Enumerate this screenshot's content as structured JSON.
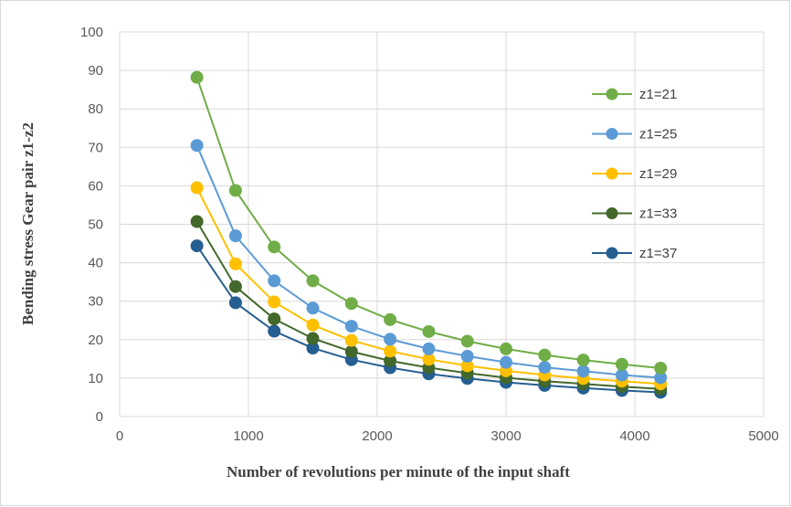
{
  "chart_data": {
    "type": "line",
    "title": "",
    "xlabel": "Number of revolutions per minute of the input shaft",
    "ylabel": "Bending stress Gear pair z1-z2",
    "xlim": [
      0,
      5000
    ],
    "ylim": [
      0,
      100
    ],
    "x_ticks": [
      0,
      1000,
      2000,
      3000,
      4000,
      5000
    ],
    "y_ticks": [
      0,
      10,
      20,
      30,
      40,
      50,
      60,
      70,
      80,
      90,
      100
    ],
    "grid": "vertical and horizontal major gridlines",
    "legend_position": "right",
    "x": [
      600,
      900,
      1200,
      1500,
      1800,
      2100,
      2400,
      2700,
      3000,
      3300,
      3600,
      3900,
      4200
    ],
    "series": [
      {
        "name": "z1=21",
        "color": "#70ad47",
        "values": [
          88.2,
          58.8,
          44.1,
          35.3,
          29.4,
          25.2,
          22.1,
          19.6,
          17.6,
          16.0,
          14.7,
          13.6,
          12.6
        ]
      },
      {
        "name": "z1=25",
        "color": "#5b9bd5",
        "values": [
          70.5,
          47.0,
          35.3,
          28.2,
          23.5,
          20.1,
          17.6,
          15.7,
          14.1,
          12.8,
          11.8,
          10.8,
          10.1
        ]
      },
      {
        "name": "z1=29",
        "color": "#ffc000",
        "values": [
          59.5,
          39.7,
          29.8,
          23.8,
          19.8,
          17.0,
          14.9,
          13.2,
          11.9,
          10.8,
          9.9,
          9.2,
          8.5
        ]
      },
      {
        "name": "z1=33",
        "color": "#43682b",
        "values": [
          50.7,
          33.8,
          25.4,
          20.3,
          16.9,
          14.5,
          12.7,
          11.3,
          10.1,
          9.2,
          8.5,
          7.8,
          7.2
        ]
      },
      {
        "name": "z1=37",
        "color": "#255e91",
        "values": [
          44.4,
          29.6,
          22.2,
          17.8,
          14.8,
          12.7,
          11.1,
          9.9,
          8.9,
          8.1,
          7.4,
          6.8,
          6.3
        ]
      }
    ]
  }
}
